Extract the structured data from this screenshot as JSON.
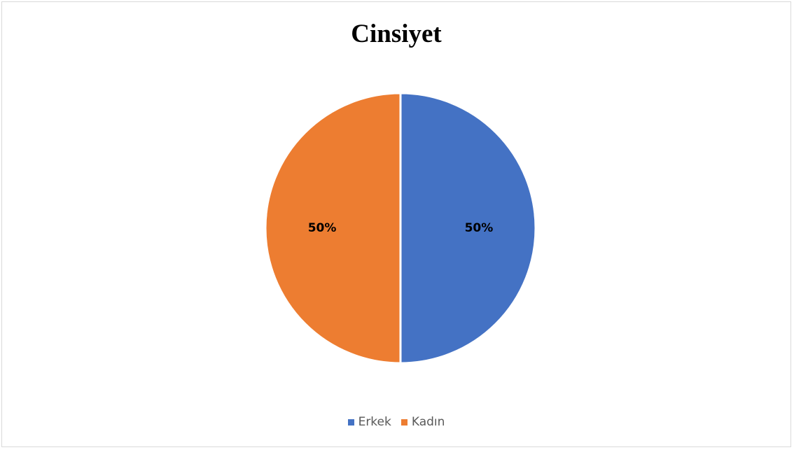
{
  "chart_data": {
    "type": "pie",
    "title": "Cinsiyet",
    "categories": [
      "Erkek",
      "Kadın"
    ],
    "values": [
      50,
      50
    ],
    "data_labels": [
      "50%",
      "50%"
    ],
    "colors": [
      "#4472c4",
      "#ed7d31"
    ],
    "legend_position": "bottom",
    "start_angle": "top, clockwise"
  }
}
